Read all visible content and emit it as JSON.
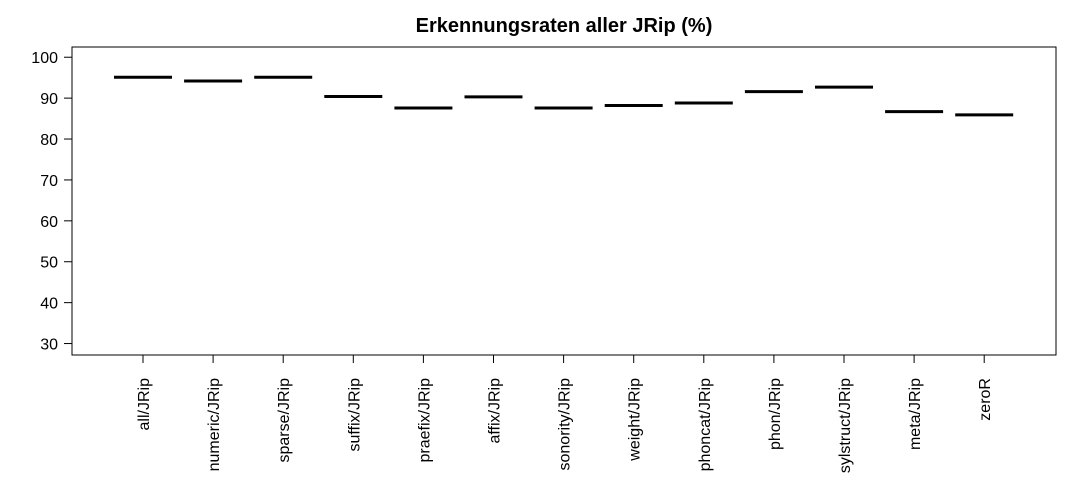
{
  "chart_data": {
    "type": "box",
    "title": "Erkennungsraten aller JRip (%)",
    "xlabel": "",
    "ylabel": "",
    "categories": [
      "all/JRip",
      "numeric/JRip",
      "sparse/JRip",
      "suffix/JRip",
      "praefix/JRip",
      "affix/JRip",
      "sonority/JRip",
      "weight/JRip",
      "phoncat/JRip",
      "phon/JRip",
      "sylstruct/JRip",
      "meta/JRip",
      "zeroR"
    ],
    "values": [
      95.1,
      94.2,
      95.1,
      90.4,
      87.6,
      90.3,
      87.6,
      88.2,
      88.8,
      91.6,
      92.7,
      86.7,
      85.9
    ],
    "yticks": [
      30,
      40,
      50,
      60,
      70,
      80,
      90,
      100
    ],
    "ylim": [
      27.2,
      102.5
    ],
    "grid": false,
    "legend": "none"
  }
}
